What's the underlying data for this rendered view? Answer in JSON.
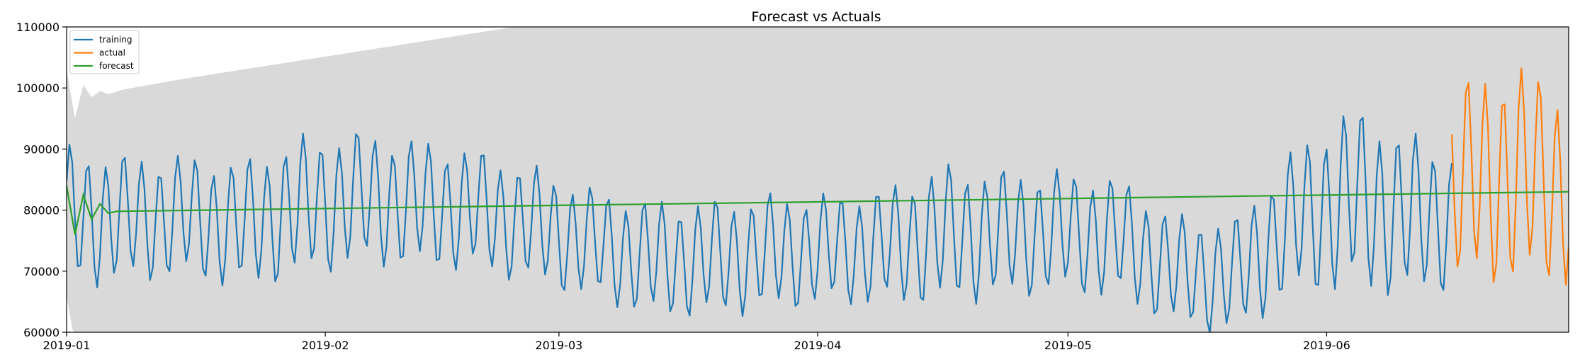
{
  "chart_data": {
    "type": "line",
    "title": "Forecast vs Actuals",
    "xlabel": "",
    "ylabel": "",
    "x_type": "date",
    "xlim": [
      "2019-01-01",
      "2019-06-30"
    ],
    "ylim": [
      60000,
      110000
    ],
    "x_ticks": [
      "2019-01",
      "2019-02",
      "2019-03",
      "2019-04",
      "2019-05",
      "2019-06"
    ],
    "y_ticks": [
      "60000",
      "70000",
      "80000",
      "90000",
      "100000",
      "110000"
    ],
    "grid": false,
    "background_band_color": "#d9d9d9",
    "legend_position": "top-left",
    "series": [
      {
        "name": "training",
        "color": "#1f77b4",
        "x": [
          "2019-01-01",
          "2019-01-08",
          "2019-01-15",
          "2019-01-22",
          "2019-01-29",
          "2019-02-05",
          "2019-02-12",
          "2019-02-19",
          "2019-02-26",
          "2019-03-05",
          "2019-03-12",
          "2019-03-19",
          "2019-03-26",
          "2019-04-02",
          "2019-04-09",
          "2019-04-16",
          "2019-04-23",
          "2019-04-30",
          "2019-05-07",
          "2019-05-14",
          "2019-05-21",
          "2019-05-28",
          "2019-06-04",
          "2019-06-11",
          "2019-06-16"
        ],
        "center": [
          79000,
          78500,
          79000,
          77500,
          80500,
          82000,
          81000,
          80000,
          77500,
          74500,
          72000,
          72000,
          73000,
          73500,
          74000,
          76000,
          76000,
          76500,
          75500,
          70000,
          69000,
          78000,
          82000,
          79000,
          78500
        ],
        "amplitude": [
          12000,
          11000,
          10500,
          11000,
          12000,
          11500,
          11000,
          10500,
          10000,
          9500,
          10000,
          10000,
          10000,
          9500,
          10000,
          12000,
          11000,
          10500,
          10500,
          9500,
          10000,
          12500,
          16000,
          14000,
          12000
        ]
      },
      {
        "name": "actual",
        "color": "#ff7f0e",
        "x": [
          "2019-06-16",
          "2019-06-23",
          "2019-06-30"
        ],
        "center": [
          84000,
          86000,
          84000
        ],
        "amplitude": [
          17000,
          19000,
          17000
        ]
      },
      {
        "name": "forecast",
        "color": "#2ca02c",
        "x": [
          "2019-01-01",
          "2019-01-02",
          "2019-01-03",
          "2019-01-04",
          "2019-01-05",
          "2019-01-06",
          "2019-01-07",
          "2019-06-30"
        ],
        "y": [
          84000,
          76000,
          82500,
          78500,
          81000,
          79500,
          79800,
          83000
        ]
      }
    ],
    "confidence_band": {
      "x": [
        "2019-01-01",
        "2019-01-02",
        "2019-01-03",
        "2019-01-04",
        "2019-01-05",
        "2019-01-06",
        "2019-01-08",
        "2019-01-15",
        "2019-01-29",
        "2019-02-12",
        "2019-02-26"
      ],
      "upper": [
        103000,
        95000,
        100500,
        98500,
        99500,
        99000,
        99800,
        101500,
        104500,
        107500,
        110500
      ]
    }
  }
}
